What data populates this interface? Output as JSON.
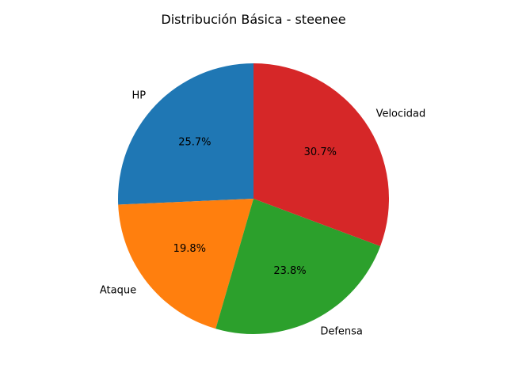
{
  "chart_data": {
    "type": "pie",
    "title": "Distribución Básica - steenee",
    "labels": [
      "HP",
      "Ataque",
      "Defensa",
      "Velocidad"
    ],
    "values": [
      25.7,
      19.8,
      23.8,
      30.7
    ],
    "percent_labels": [
      "25.7%",
      "19.8%",
      "23.8%",
      "30.7%"
    ],
    "colors": [
      "#1f77b4",
      "#ff7f0e",
      "#2ca02c",
      "#d62728"
    ],
    "start_angle_deg": 90,
    "direction": "counterclockwise",
    "legend": "none"
  }
}
